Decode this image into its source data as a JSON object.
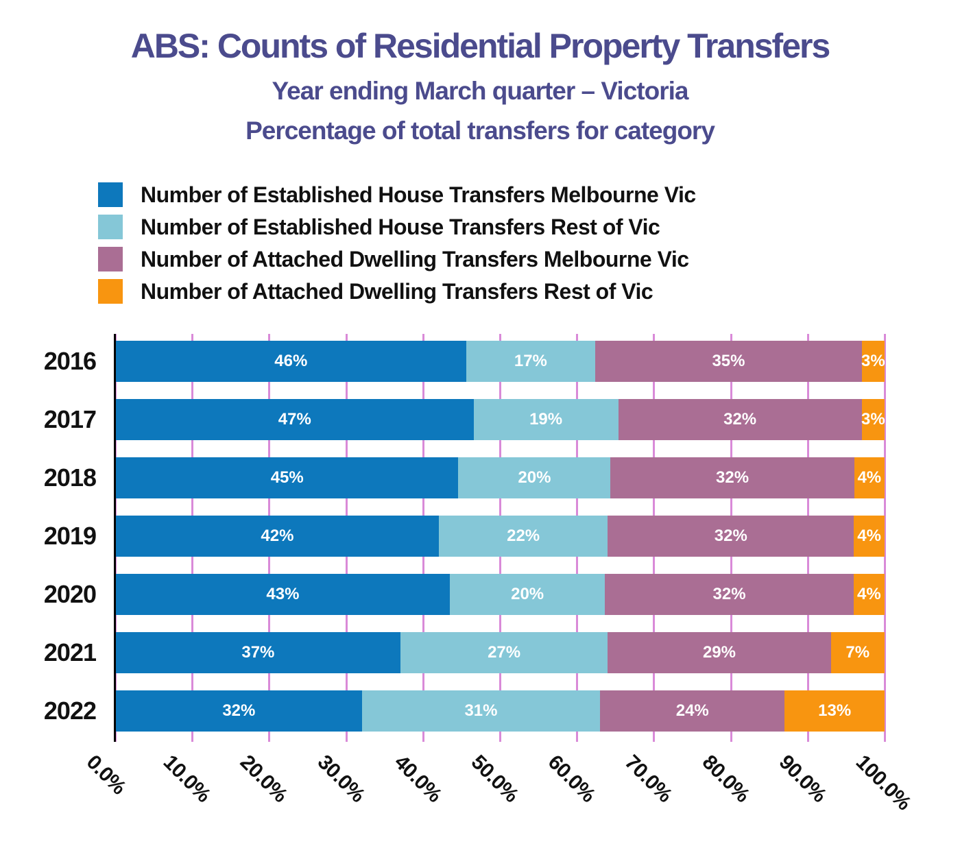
{
  "title": "ABS: Counts of Residential Property Transfers",
  "subtitle_line1": "Year ending March quarter – Victoria",
  "subtitle_line2": "Percentage of total transfers for category",
  "colors": {
    "title_text": "#4b4b8d",
    "legend_text": "#111111",
    "axis_line": "#000000",
    "gridline": "#d98ad8",
    "bar_label_text": "#ffffff",
    "background": "#ffffff"
  },
  "chart_data": {
    "type": "bar",
    "orientation": "horizontal",
    "stacked": true,
    "title": "ABS: Counts of Residential Property Transfers",
    "subtitle": "Year ending March quarter – Victoria",
    "subtitle2": "Percentage of total transfers for category",
    "categories": [
      "2016",
      "2017",
      "2018",
      "2019",
      "2020",
      "2021",
      "2022"
    ],
    "series": [
      {
        "name": "Number of Established House Transfers Melbourne Vic",
        "color": "#0d78bc",
        "values": [
          46,
          47,
          45,
          42,
          43,
          37,
          32
        ]
      },
      {
        "name": "Number of Established House Transfers Rest of Vic",
        "color": "#85c7d7",
        "values": [
          17,
          19,
          20,
          22,
          20,
          27,
          31
        ]
      },
      {
        "name": "Number of Attached Dwelling Transfers Melbourne Vic",
        "color": "#aa6e94",
        "values": [
          35,
          32,
          32,
          32,
          32,
          29,
          24
        ]
      },
      {
        "name": "Number of Attached Dwelling Transfers Rest of Vic",
        "color": "#f89510",
        "values": [
          3,
          3,
          4,
          4,
          4,
          7,
          13
        ]
      }
    ],
    "value_suffix": "%",
    "xlabel": "",
    "ylabel": "",
    "xlim": [
      0,
      100
    ],
    "x_tick_step": 10,
    "x_ticks": [
      "0.0%",
      "10.0%",
      "20.0%",
      "30.0%",
      "40.0%",
      "50.0%",
      "60.0%",
      "70.0%",
      "80.0%",
      "90.0%",
      "100.0%"
    ],
    "grid": true,
    "grid_axis": "x",
    "legend_position": "top-left",
    "bar_labels_shown": true
  }
}
